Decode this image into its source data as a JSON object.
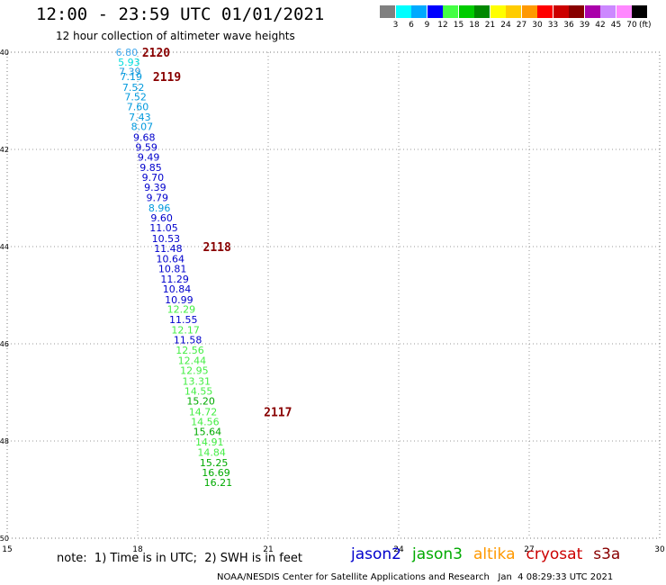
{
  "header": {
    "title": "12:00 - 23:59 UTC 01/01/2021",
    "subtitle": "12 hour collection of altimeter wave heights"
  },
  "colorbar": {
    "colors": [
      "#808080",
      "#00ffff",
      "#00aaff",
      "#0000ff",
      "#44ff44",
      "#00cc00",
      "#008800",
      "#ffff00",
      "#ffcc00",
      "#ff9900",
      "#ff0000",
      "#cc0000",
      "#880000",
      "#aa00aa",
      "#cc88ff",
      "#ff88ff",
      "#000000"
    ],
    "labels": [
      "3",
      "6",
      "9",
      "12",
      "15",
      "18",
      "21",
      "24",
      "27",
      "30",
      "33",
      "36",
      "39",
      "42",
      "45",
      "70"
    ],
    "unit": "(ft)"
  },
  "note": "note:  1) Time is in UTC;  2) SWH is in feet",
  "satellites": [
    {
      "name": "jason2",
      "color": "#0000cc"
    },
    {
      "name": "jason3",
      "color": "#00aa00"
    },
    {
      "name": "altika",
      "color": "#ff9900"
    },
    {
      "name": "cryosat",
      "color": "#cc0000"
    },
    {
      "name": "s3a",
      "color": "#880000"
    }
  ],
  "footer": "NOAA/NESDIS Center for Satellite Applications and Research   Jan  4 08:29:33 UTC 2021",
  "chart_data": {
    "type": "scatter",
    "title": "12:00 - 23:59 UTC 01/01/2021",
    "subtitle": "12 hour collection of altimeter wave heights",
    "xlim": [
      15,
      30
    ],
    "ylim": [
      -50,
      -40
    ],
    "x_ticks": [
      "15",
      "18",
      "21",
      "24",
      "27",
      "30"
    ],
    "y_ticks": [
      "-40",
      "-42",
      "-44",
      "-46",
      "-48",
      "-50"
    ],
    "grid": "dotted",
    "points": [
      {
        "lon": 17.75,
        "lat": -40.0,
        "label": "6.80",
        "color": "#44aaee"
      },
      {
        "lon": 17.8,
        "lat": -40.2,
        "label": "5.93",
        "color": "#00dddd"
      },
      {
        "lon": 17.82,
        "lat": -40.4,
        "label": "7.39",
        "color": "#2299dd"
      },
      {
        "lon": 17.85,
        "lat": -40.5,
        "label": "7.19",
        "color": "#0099dd"
      },
      {
        "lon": 17.9,
        "lat": -40.72,
        "label": "7.52",
        "color": "#0099dd"
      },
      {
        "lon": 17.95,
        "lat": -40.92,
        "label": "7.52",
        "color": "#0099dd"
      },
      {
        "lon": 18.0,
        "lat": -41.12,
        "label": "7.60",
        "color": "#0099dd"
      },
      {
        "lon": 18.05,
        "lat": -41.33,
        "label": "7.43",
        "color": "#0099dd"
      },
      {
        "lon": 18.1,
        "lat": -41.53,
        "label": "8.07",
        "color": "#0099dd"
      },
      {
        "lon": 18.15,
        "lat": -41.75,
        "label": "9.68",
        "color": "#0000cc"
      },
      {
        "lon": 18.2,
        "lat": -41.95,
        "label": "9.59",
        "color": "#0000cc"
      },
      {
        "lon": 18.25,
        "lat": -42.16,
        "label": "9.49",
        "color": "#0000cc"
      },
      {
        "lon": 18.3,
        "lat": -42.37,
        "label": "9.85",
        "color": "#0000cc"
      },
      {
        "lon": 18.35,
        "lat": -42.57,
        "label": "9.70",
        "color": "#0000cc"
      },
      {
        "lon": 18.4,
        "lat": -42.78,
        "label": "9.39",
        "color": "#0000cc"
      },
      {
        "lon": 18.45,
        "lat": -42.99,
        "label": "9.79",
        "color": "#0000cc"
      },
      {
        "lon": 18.5,
        "lat": -43.2,
        "label": "8.96",
        "color": "#0099dd"
      },
      {
        "lon": 18.55,
        "lat": -43.41,
        "label": "9.60",
        "color": "#0000cc"
      },
      {
        "lon": 18.6,
        "lat": -43.61,
        "label": "11.05",
        "color": "#0000cc"
      },
      {
        "lon": 18.65,
        "lat": -43.83,
        "label": "10.53",
        "color": "#0000cc"
      },
      {
        "lon": 18.7,
        "lat": -44.04,
        "label": "11.48",
        "color": "#0000cc"
      },
      {
        "lon": 18.75,
        "lat": -44.25,
        "label": "10.64",
        "color": "#0000cc"
      },
      {
        "lon": 18.8,
        "lat": -44.45,
        "label": "10.81",
        "color": "#0000cc"
      },
      {
        "lon": 18.85,
        "lat": -44.67,
        "label": "11.29",
        "color": "#0000cc"
      },
      {
        "lon": 18.9,
        "lat": -44.87,
        "label": "10.84",
        "color": "#0000cc"
      },
      {
        "lon": 18.95,
        "lat": -45.09,
        "label": "10.99",
        "color": "#0000cc"
      },
      {
        "lon": 19.0,
        "lat": -45.29,
        "label": "12.29",
        "color": "#44ee44"
      },
      {
        "lon": 19.05,
        "lat": -45.5,
        "label": "11.55",
        "color": "#0000cc"
      },
      {
        "lon": 19.1,
        "lat": -45.71,
        "label": "12.17",
        "color": "#44ee44"
      },
      {
        "lon": 19.15,
        "lat": -45.92,
        "label": "11.58",
        "color": "#0000cc"
      },
      {
        "lon": 19.2,
        "lat": -46.13,
        "label": "12.56",
        "color": "#44ee44"
      },
      {
        "lon": 19.25,
        "lat": -46.34,
        "label": "12.44",
        "color": "#44ee44"
      },
      {
        "lon": 19.3,
        "lat": -46.55,
        "label": "12.95",
        "color": "#44ee44"
      },
      {
        "lon": 19.35,
        "lat": -46.77,
        "label": "13.31",
        "color": "#44ee44"
      },
      {
        "lon": 19.4,
        "lat": -46.97,
        "label": "14.55",
        "color": "#44ee44"
      },
      {
        "lon": 19.45,
        "lat": -47.18,
        "label": "15.20",
        "color": "#00aa00"
      },
      {
        "lon": 19.5,
        "lat": -47.4,
        "label": "14.72",
        "color": "#44ee44"
      },
      {
        "lon": 19.55,
        "lat": -47.6,
        "label": "14.56",
        "color": "#44ee44"
      },
      {
        "lon": 19.6,
        "lat": -47.81,
        "label": "15.64",
        "color": "#00aa00"
      },
      {
        "lon": 19.65,
        "lat": -48.02,
        "label": "14.91",
        "color": "#44ee44"
      },
      {
        "lon": 19.7,
        "lat": -48.23,
        "label": "14.84",
        "color": "#44ee44"
      },
      {
        "lon": 19.75,
        "lat": -48.44,
        "label": "15.25",
        "color": "#00aa00"
      },
      {
        "lon": 19.8,
        "lat": -48.65,
        "label": "16.69",
        "color": "#00aa00"
      },
      {
        "lon": 19.85,
        "lat": -48.85,
        "label": "16.21",
        "color": "#00aa00"
      }
    ],
    "annotations": [
      {
        "lon": 18.1,
        "lat": -40.0,
        "label": "2120",
        "color": "#880000"
      },
      {
        "lon": 18.35,
        "lat": -40.5,
        "label": "2119",
        "color": "#880000"
      },
      {
        "lon": 19.5,
        "lat": -44.0,
        "label": "2118",
        "color": "#880000"
      },
      {
        "lon": 20.9,
        "lat": -47.4,
        "label": "2117",
        "color": "#880000"
      }
    ]
  }
}
